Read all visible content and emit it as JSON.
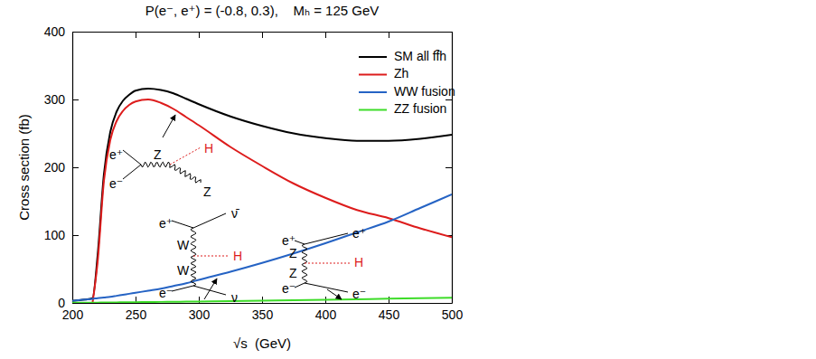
{
  "chart_data": {
    "type": "line",
    "title": "P(e⁻, e⁺) = (-0.8, 0.3),    Mₕ = 125 GeV",
    "x_label": "√s  (GeV)",
    "y_label": "Cross section (fb)",
    "x": [
      200,
      210,
      216,
      220,
      225,
      230,
      235,
      240,
      245,
      250,
      260,
      270,
      280,
      290,
      300,
      325,
      350,
      375,
      400,
      425,
      450,
      475,
      500
    ],
    "series": [
      {
        "name": "SM all ff̄h",
        "color": "#000000",
        "values": [
          3,
          5,
          7,
          70,
          190,
          252,
          282,
          298,
          307,
          313,
          316,
          314,
          309,
          301,
          293,
          275,
          261,
          250,
          243,
          239,
          239,
          242,
          248
        ]
      },
      {
        "name": "Zh",
        "color": "#dd1c1c",
        "values": [
          null,
          null,
          0,
          60,
          180,
          240,
          268,
          283,
          292,
          297,
          300,
          295,
          286,
          274,
          262,
          230,
          202,
          176,
          155,
          137,
          125,
          110,
          97
        ]
      },
      {
        "name": "WW fusion",
        "color": "#2563c4",
        "values": [
          3,
          5,
          6,
          7,
          8,
          9,
          10.5,
          12,
          13.5,
          15,
          18,
          21,
          25,
          29,
          34,
          46,
          59,
          73,
          88,
          104,
          120,
          140,
          160
        ]
      },
      {
        "name": "ZZ fusion",
        "color": "#3ddc28",
        "values": [
          0.2,
          0.3,
          0.4,
          0.5,
          0.6,
          0.7,
          0.8,
          0.9,
          1,
          1.1,
          1.3,
          1.5,
          1.7,
          1.9,
          2.1,
          2.7,
          3.3,
          4,
          4.7,
          5.4,
          6.2,
          7,
          7.8
        ]
      }
    ],
    "xlim": [
      200,
      500
    ],
    "xticks": [
      200,
      250,
      300,
      350,
      400,
      450,
      500
    ],
    "ylim": [
      0,
      400
    ],
    "yticks": [
      0,
      100,
      200,
      300,
      400
    ],
    "legend": "upper right",
    "grid": false,
    "annotations": [
      [
        "e⁺",
        "e⁻",
        "Z",
        "H",
        "Z"
      ],
      [
        "e⁺",
        "ν̄",
        "W",
        "H",
        "W",
        "e⁻",
        "ν"
      ],
      [
        "e⁺",
        "e⁺",
        "Z",
        "H",
        "Z",
        "e⁻",
        "e⁻"
      ]
    ]
  }
}
